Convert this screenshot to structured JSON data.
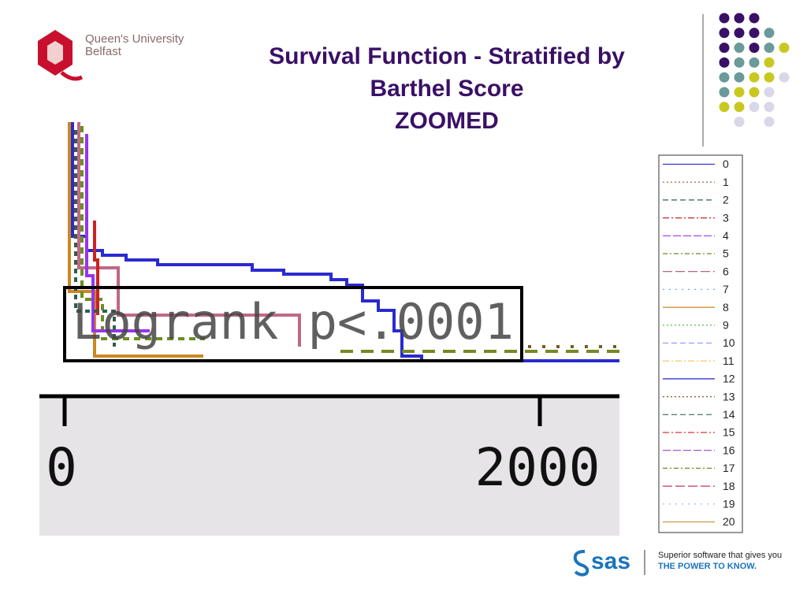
{
  "header": {
    "logo_line1": "Queen's University",
    "logo_line2": "Belfast",
    "title_line1": "Survival Function - Stratified by",
    "title_line2": "Barthel Score",
    "title_line3": "ZOOMED"
  },
  "chart": {
    "annotation": "Logrank p<.0001",
    "x_tick_labels": [
      "0",
      "2000"
    ]
  },
  "legend": [
    {
      "label": "0",
      "color": "#3333cc"
    },
    {
      "label": "1",
      "color": "#a0522d"
    },
    {
      "label": "2",
      "color": "#2f5f4f"
    },
    {
      "label": "3",
      "color": "#cc2222"
    },
    {
      "label": "4",
      "color": "#9933ee"
    },
    {
      "label": "5",
      "color": "#6b8e23"
    },
    {
      "label": "6",
      "color": "#b05070"
    },
    {
      "label": "7",
      "color": "#66aaff"
    },
    {
      "label": "8",
      "color": "#cc8822"
    },
    {
      "label": "9",
      "color": "#33bb33"
    },
    {
      "label": "10",
      "color": "#9999ff"
    },
    {
      "label": "11",
      "color": "#ffbb55"
    },
    {
      "label": "12",
      "color": "#2222cc"
    },
    {
      "label": "13",
      "color": "#7a5a2a"
    },
    {
      "label": "14",
      "color": "#3a6a5a"
    },
    {
      "label": "15",
      "color": "#dd3333"
    },
    {
      "label": "16",
      "color": "#9944cc"
    },
    {
      "label": "17",
      "color": "#778822"
    },
    {
      "label": "18",
      "color": "#cc3355"
    },
    {
      "label": "19",
      "color": "#88bbee"
    },
    {
      "label": "20",
      "color": "#cc9944"
    }
  ],
  "footer": {
    "brand": "sas",
    "tagline_line1": "Superior software that gives you",
    "tagline_line2": "THE POWER TO KNOW."
  }
}
